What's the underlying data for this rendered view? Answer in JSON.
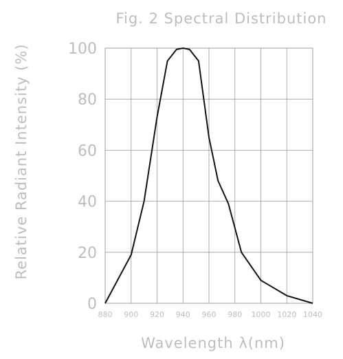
{
  "chart_data": {
    "type": "line",
    "title": "Fig. 2 Spectral Distribution",
    "xlabel": "Wavelength λ(nm)",
    "ylabel": "Relative Radiant Intensity (%)",
    "xlim": [
      880,
      1040
    ],
    "ylim": [
      0,
      100
    ],
    "xticks": [
      880,
      900,
      920,
      940,
      960,
      980,
      1000,
      1020,
      1040
    ],
    "yticks": [
      0,
      20,
      40,
      60,
      80,
      100
    ],
    "grid": true,
    "series": [
      {
        "x": [
          880,
          900,
          910,
          920,
          928,
          935,
          940,
          945,
          952,
          960,
          967,
          975,
          985,
          1000,
          1020,
          1040
        ],
        "y": [
          0,
          19,
          40,
          73,
          95,
          99.5,
          100,
          99.5,
          95,
          65,
          48,
          39,
          20,
          9,
          3,
          0
        ]
      }
    ]
  }
}
